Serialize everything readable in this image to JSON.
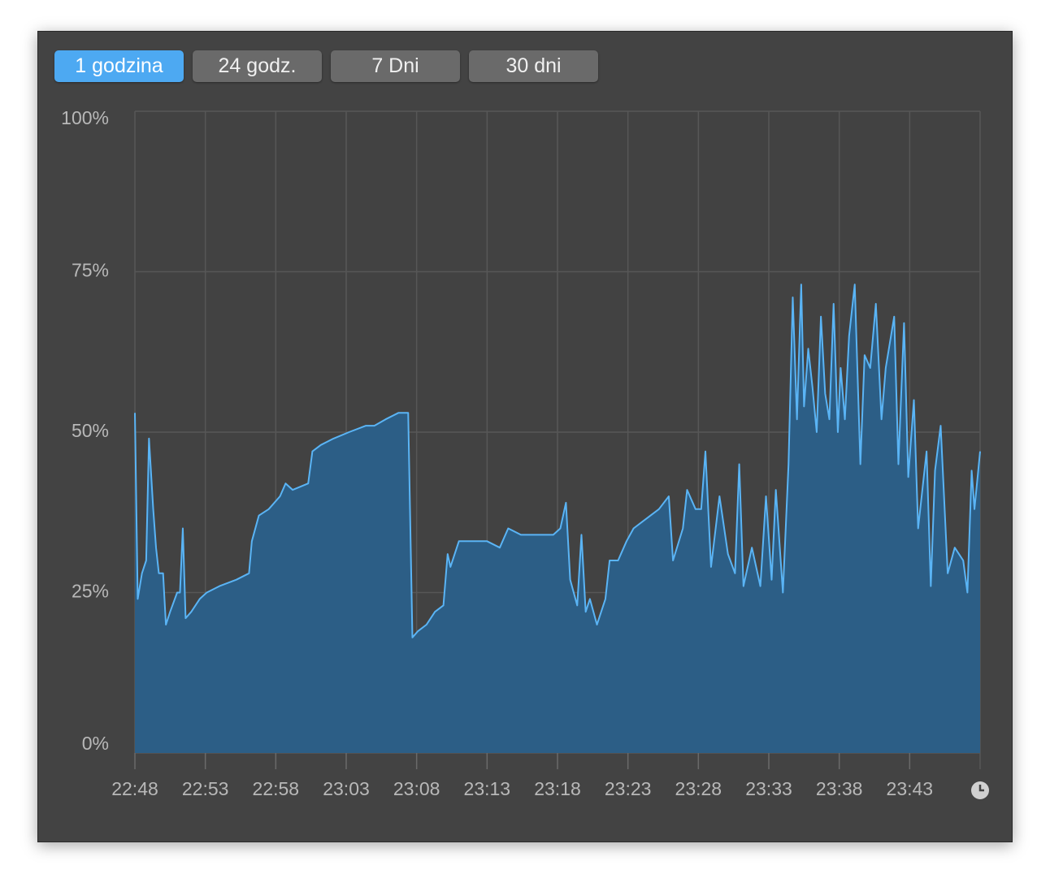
{
  "tabs": [
    "1 godzina",
    "24 godz.",
    "7 Dni",
    "30 dni"
  ],
  "chart_data": {
    "type": "area",
    "x": [
      0,
      0.2,
      0.5,
      0.8,
      1.0,
      1.3,
      1.5,
      1.7,
      2.0,
      2.2,
      2.5,
      3.0,
      3.2,
      3.4,
      3.6,
      4.0,
      4.6,
      5.1,
      6.0,
      7.2,
      8.1,
      8.3,
      8.8,
      9.5,
      10.3,
      10.7,
      11.2,
      12.3,
      12.6,
      13.2,
      14.1,
      15.2,
      16.4,
      17.0,
      17.8,
      18.7,
      19.4,
      19.7,
      20.1,
      20.7,
      21.3,
      21.9,
      22.2,
      22.4,
      23.0,
      23.9,
      25.0,
      25.9,
      26.5,
      27.4,
      28.5,
      29.7,
      30.2,
      30.6,
      30.9,
      31.4,
      31.7,
      32.0,
      32.3,
      32.8,
      33.4,
      33.7,
      34.3,
      34.9,
      35.4,
      36.0,
      36.6,
      37.2,
      37.9,
      38.2,
      38.9,
      39.2,
      39.8,
      40.2,
      40.5,
      40.9,
      41.5,
      42.1,
      42.6,
      42.9,
      43.2,
      43.8,
      44.4,
      44.8,
      45.2,
      45.5,
      46.0,
      46.4,
      46.7,
      47.0,
      47.3,
      47.5,
      47.8,
      48.1,
      48.4,
      48.7,
      49.0,
      49.3,
      49.6,
      49.9,
      50.1,
      50.4,
      50.7,
      51.1,
      51.5,
      51.8,
      52.2,
      52.6,
      53.0,
      53.3,
      53.9,
      54.2,
      54.6,
      54.9,
      55.3,
      55.6,
      56.2,
      56.5,
      56.8,
      57.2,
      57.7,
      58.2,
      58.8,
      59.1,
      59.4,
      59.6,
      60.0
    ],
    "values": [
      53,
      24,
      28,
      30,
      49,
      38,
      32,
      28,
      28,
      20,
      22,
      25,
      25,
      35,
      21,
      22,
      24,
      25,
      26,
      27,
      28,
      33,
      37,
      38,
      40,
      42,
      41,
      42,
      47,
      48,
      49,
      50,
      51,
      51,
      52,
      53,
      53,
      18,
      19,
      20,
      22,
      23,
      31,
      29,
      33,
      33,
      33,
      32,
      35,
      34,
      34,
      34,
      35,
      39,
      27,
      23,
      34,
      22,
      24,
      20,
      24,
      30,
      30,
      33,
      35,
      36,
      37,
      38,
      40,
      30,
      35,
      41,
      38,
      38,
      47,
      29,
      40,
      31,
      28,
      45,
      26,
      32,
      26,
      40,
      27,
      41,
      25,
      45,
      71,
      52,
      73,
      54,
      63,
      57,
      50,
      68,
      56,
      52,
      70,
      50,
      60,
      52,
      65,
      73,
      45,
      62,
      60,
      70,
      52,
      60,
      68,
      45,
      67,
      43,
      55,
      35,
      47,
      26,
      44,
      51,
      28,
      32,
      30,
      25,
      44,
      38,
      47
    ],
    "color": "#5ab4f5",
    "fill": "#2c5e86",
    "xlim": [
      0,
      60
    ],
    "xticks": [
      {
        "value": 0,
        "label": "22:48"
      },
      {
        "value": 5,
        "label": "22:53"
      },
      {
        "value": 10,
        "label": "22:58"
      },
      {
        "value": 15,
        "label": "23:03"
      },
      {
        "value": 20,
        "label": "23:08"
      },
      {
        "value": 25,
        "label": "23:13"
      },
      {
        "value": 30,
        "label": "23:18"
      },
      {
        "value": 35,
        "label": "23:23"
      },
      {
        "value": 40,
        "label": "23:28"
      },
      {
        "value": 45,
        "label": "23:33"
      },
      {
        "value": 50,
        "label": "23:38"
      },
      {
        "value": 55,
        "label": "23:43"
      }
    ],
    "ylim": [
      0,
      100
    ],
    "yticks": [
      {
        "value": 0,
        "label": "0%"
      },
      {
        "value": 25,
        "label": "25%"
      },
      {
        "value": 50,
        "label": "50%"
      },
      {
        "value": 75,
        "label": "75%"
      },
      {
        "value": 100,
        "label": "100%"
      }
    ],
    "grid": true
  }
}
